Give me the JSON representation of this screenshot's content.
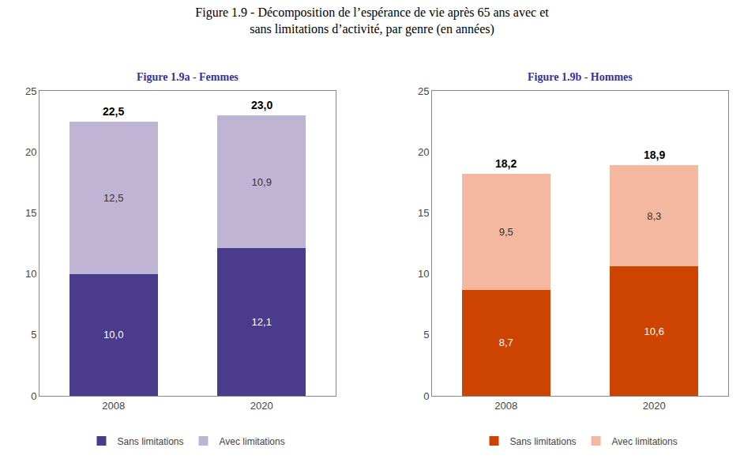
{
  "title": "Figure 1.9 - Décomposition de l’espérance de vie après 65 ans avec et\nsans limitations d’activité, par genre (en années)",
  "chart_data": [
    {
      "type": "bar",
      "subtitle": "Figure 1.9a - Femmes",
      "stacked": true,
      "data_labels": true,
      "categories": [
        "2008",
        "2020"
      ],
      "series": [
        {
          "name": "Sans limitations",
          "color": "#4B3B8C",
          "values": [
            10.0,
            12.1
          ],
          "value_labels": [
            "10,0",
            "12,1"
          ]
        },
        {
          "name": "Avec limitations",
          "color": "#C0B4D4",
          "values": [
            12.5,
            10.9
          ],
          "value_labels": [
            "12,5",
            "10,9"
          ]
        }
      ],
      "totals": [
        22.5,
        23.0
      ],
      "total_labels": [
        "22,5",
        "23,0"
      ],
      "ylim": [
        0,
        25
      ],
      "yticks": [
        0,
        5,
        10,
        15,
        20,
        25
      ],
      "grid": false,
      "legend": "bottom"
    },
    {
      "type": "bar",
      "subtitle": "Figure 1.9b - Hommes",
      "stacked": true,
      "data_labels": true,
      "categories": [
        "2008",
        "2020"
      ],
      "series": [
        {
          "name": "Sans limitations",
          "color": "#CC4400",
          "values": [
            8.7,
            10.6
          ],
          "value_labels": [
            "8,7",
            "10,6"
          ]
        },
        {
          "name": "Avec limitations",
          "color": "#F4B8A0",
          "values": [
            9.5,
            8.3
          ],
          "value_labels": [
            "9,5",
            "8,3"
          ]
        }
      ],
      "totals": [
        18.2,
        18.9
      ],
      "total_labels": [
        "18,2",
        "18,9"
      ],
      "ylim": [
        0,
        25
      ],
      "yticks": [
        0,
        5,
        10,
        15,
        20,
        25
      ],
      "grid": false,
      "legend": "bottom"
    }
  ]
}
